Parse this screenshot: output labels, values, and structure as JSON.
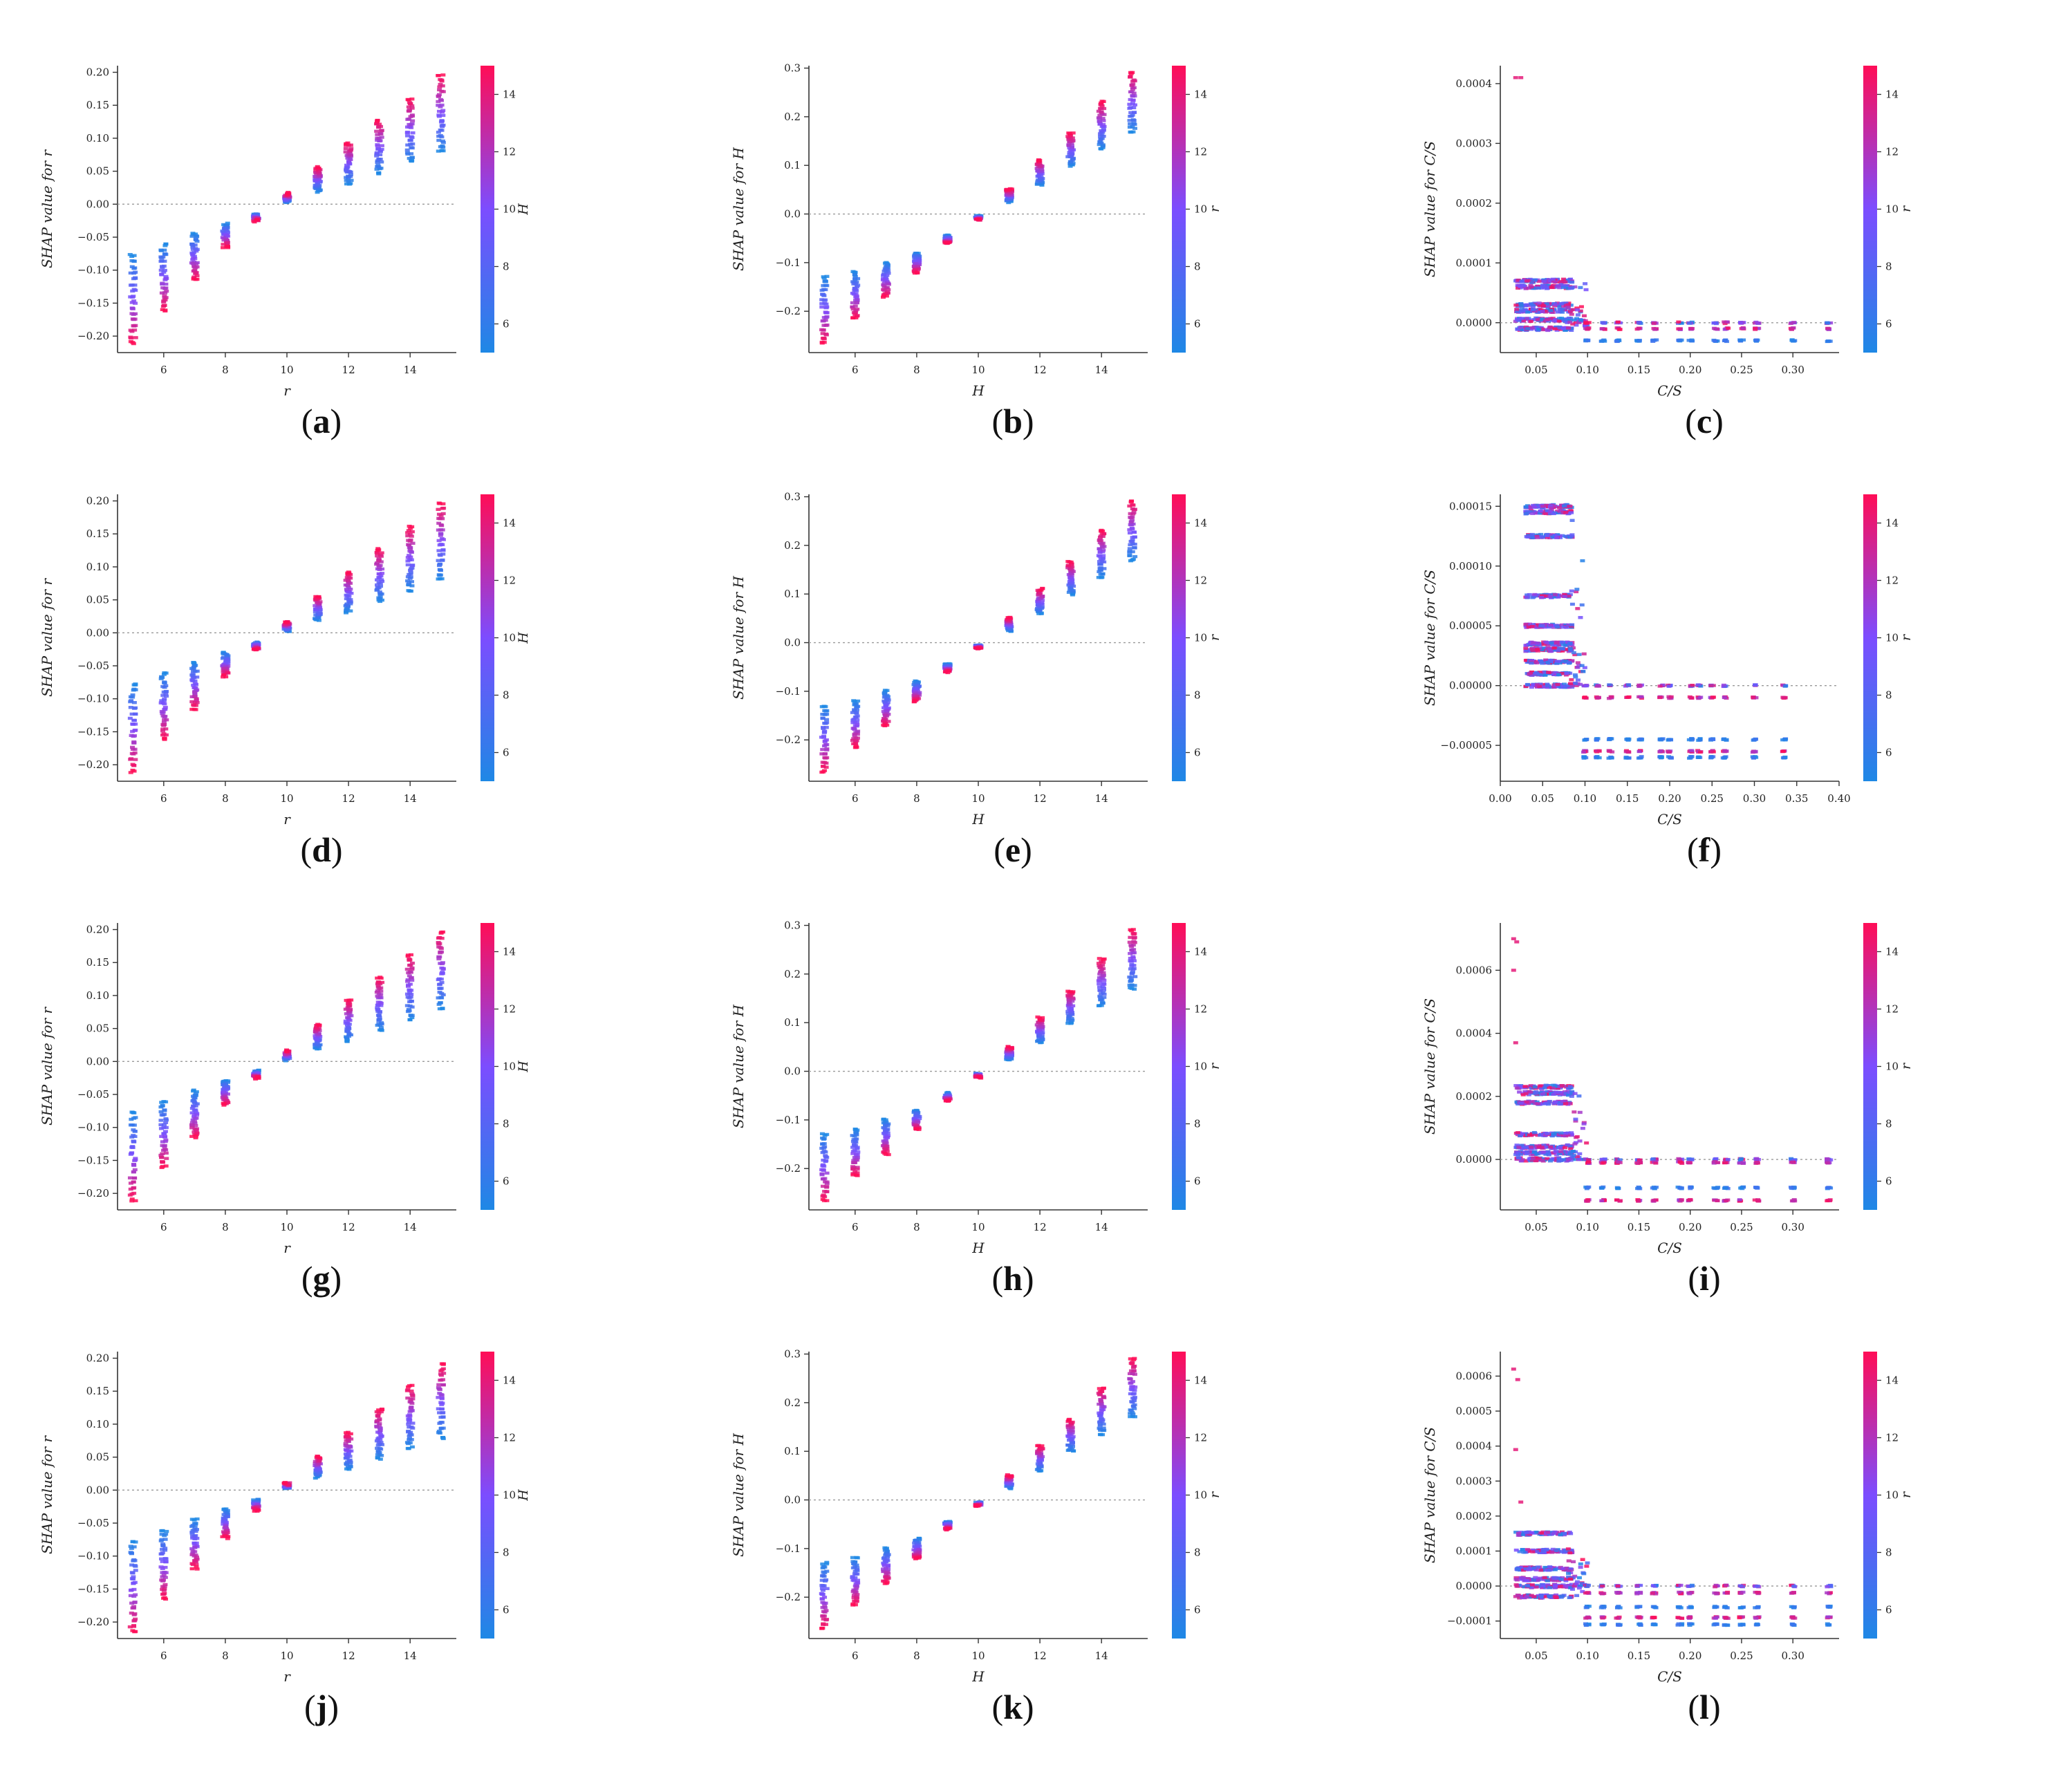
{
  "figure": {
    "colorbar": {
      "low_color": "#1E88E5",
      "high_color": "#FF0D57",
      "ticks": [
        6,
        8,
        10,
        12,
        14
      ]
    },
    "caption_bold": "true"
  },
  "chart_data": [
    {
      "type": "scatter",
      "caption": "(a)",
      "xlabel": "r",
      "ylabel": "SHAP value for r",
      "colorbar_label": "H",
      "kind": "linear",
      "xlim": [
        4.5,
        15.5
      ],
      "ylim": [
        -0.225,
        0.21
      ],
      "xticks": [
        6,
        8,
        10,
        12,
        14
      ],
      "xtick_labels": [
        "6",
        "8",
        "10",
        "12",
        "14"
      ],
      "yticks": [
        -0.2,
        -0.15,
        -0.1,
        -0.05,
        0.0,
        0.05,
        0.1,
        0.15,
        0.2
      ],
      "ytick_labels": [
        "−0.20",
        "−0.15",
        "−0.10",
        "−0.05",
        "0.00",
        "0.05",
        "0.10",
        "0.15",
        "0.20"
      ],
      "x": [
        5,
        6,
        7,
        8,
        9,
        10,
        11,
        12,
        13,
        14,
        15
      ],
      "y_low": [
        -0.078,
        -0.062,
        -0.045,
        -0.03,
        -0.015,
        0.003,
        0.02,
        0.032,
        0.048,
        0.065,
        0.08
      ],
      "y_high": [
        -0.21,
        -0.16,
        -0.115,
        -0.065,
        -0.025,
        0.016,
        0.055,
        0.092,
        0.127,
        0.16,
        0.195
      ]
    },
    {
      "type": "scatter",
      "caption": "(b)",
      "xlabel": "H",
      "ylabel": "SHAP value for H",
      "colorbar_label": "r",
      "kind": "linear",
      "xlim": [
        4.5,
        15.5
      ],
      "ylim": [
        -0.285,
        0.305
      ],
      "xticks": [
        6,
        8,
        10,
        12,
        14
      ],
      "xtick_labels": [
        "6",
        "8",
        "10",
        "12",
        "14"
      ],
      "yticks": [
        -0.2,
        -0.1,
        0.0,
        0.1,
        0.2,
        0.3
      ],
      "ytick_labels": [
        "−0.2",
        "−0.1",
        "0.0",
        "0.1",
        "0.2",
        "0.3"
      ],
      "x": [
        5,
        6,
        7,
        8,
        9,
        10,
        11,
        12,
        13,
        14,
        15
      ],
      "y_low": [
        -0.13,
        -0.12,
        -0.1,
        -0.08,
        -0.045,
        -0.005,
        0.025,
        0.06,
        0.1,
        0.135,
        0.17
      ],
      "y_high": [
        -0.265,
        -0.215,
        -0.17,
        -0.12,
        -0.06,
        -0.012,
        0.05,
        0.11,
        0.165,
        0.23,
        0.29
      ]
    },
    {
      "type": "scatter",
      "caption": "(c)",
      "xlabel": "C/S",
      "ylabel": "SHAP value for C/S",
      "colorbar_label": "r",
      "kind": "cs",
      "xlim": [
        0.015,
        0.345
      ],
      "ylim": [
        -5e-05,
        0.00043
      ],
      "xticks": [
        0.05,
        0.1,
        0.15,
        0.2,
        0.25,
        0.3
      ],
      "xtick_labels": [
        "0.05",
        "0.10",
        "0.15",
        "0.20",
        "0.25",
        "0.30"
      ],
      "yticks": [
        0.0,
        0.0001,
        0.0002,
        0.0003,
        0.0004
      ],
      "ytick_labels": [
        "0.0000",
        "0.0001",
        "0.0002",
        "0.0003",
        "0.0004"
      ],
      "x": [
        0.1,
        0.115,
        0.13,
        0.15,
        0.165,
        0.19,
        0.2,
        0.225,
        0.235,
        0.25,
        0.265,
        0.3,
        0.335
      ],
      "bands_left": [
        7e-05,
        6e-05,
        3e-05,
        2e-05,
        5e-06,
        -1e-05
      ],
      "bands_right": [
        0.0,
        -1e-05,
        -3e-05
      ],
      "outliers": [
        [
          0.03,
          0.00041
        ],
        [
          0.035,
          0.00041
        ]
      ]
    },
    {
      "type": "scatter",
      "caption": "(d)",
      "xlabel": "r",
      "ylabel": "SHAP value for r",
      "colorbar_label": "H",
      "kind": "linear",
      "xlim": [
        4.5,
        15.5
      ],
      "ylim": [
        -0.225,
        0.21
      ],
      "xticks": [
        6,
        8,
        10,
        12,
        14
      ],
      "xtick_labels": [
        "6",
        "8",
        "10",
        "12",
        "14"
      ],
      "yticks": [
        -0.2,
        -0.15,
        -0.1,
        -0.05,
        0.0,
        0.05,
        0.1,
        0.15,
        0.2
      ],
      "ytick_labels": [
        "−0.20",
        "−0.15",
        "−0.10",
        "−0.05",
        "0.00",
        "0.05",
        "0.10",
        "0.15",
        "0.20"
      ],
      "x": [
        5,
        6,
        7,
        8,
        9,
        10,
        11,
        12,
        13,
        14,
        15
      ],
      "y_low": [
        -0.078,
        -0.062,
        -0.045,
        -0.03,
        -0.015,
        0.003,
        0.02,
        0.032,
        0.048,
        0.065,
        0.08
      ],
      "y_high": [
        -0.21,
        -0.16,
        -0.115,
        -0.065,
        -0.025,
        0.016,
        0.055,
        0.092,
        0.127,
        0.16,
        0.195
      ]
    },
    {
      "type": "scatter",
      "caption": "(e)",
      "xlabel": "H",
      "ylabel": "SHAP value for H",
      "colorbar_label": "r",
      "kind": "linear",
      "xlim": [
        4.5,
        15.5
      ],
      "ylim": [
        -0.285,
        0.305
      ],
      "xticks": [
        6,
        8,
        10,
        12,
        14
      ],
      "xtick_labels": [
        "6",
        "8",
        "10",
        "12",
        "14"
      ],
      "yticks": [
        -0.2,
        -0.1,
        0.0,
        0.1,
        0.2,
        0.3
      ],
      "ytick_labels": [
        "−0.2",
        "−0.1",
        "0.0",
        "0.1",
        "0.2",
        "0.3"
      ],
      "x": [
        5,
        6,
        7,
        8,
        9,
        10,
        11,
        12,
        13,
        14,
        15
      ],
      "y_low": [
        -0.13,
        -0.12,
        -0.1,
        -0.08,
        -0.045,
        -0.005,
        0.025,
        0.06,
        0.1,
        0.135,
        0.17
      ],
      "y_high": [
        -0.265,
        -0.215,
        -0.17,
        -0.12,
        -0.06,
        -0.012,
        0.05,
        0.11,
        0.165,
        0.23,
        0.29
      ]
    },
    {
      "type": "scatter",
      "caption": "(f)",
      "xlabel": "C/S",
      "ylabel": "SHAP value for C/S",
      "colorbar_label": "r",
      "kind": "cs",
      "xlim": [
        0.0,
        0.4
      ],
      "ylim": [
        -8e-05,
        0.00016
      ],
      "xticks": [
        0.0,
        0.05,
        0.1,
        0.15,
        0.2,
        0.25,
        0.3,
        0.35,
        0.4
      ],
      "xtick_labels": [
        "0.00",
        "0.05",
        "0.10",
        "0.15",
        "0.20",
        "0.25",
        "0.30",
        "0.35",
        "0.40"
      ],
      "yticks": [
        -5e-05,
        0.0,
        5e-05,
        0.0001,
        0.00015
      ],
      "ytick_labels": [
        "−0.00005",
        "0.00000",
        "0.00005",
        "0.00010",
        "0.00015"
      ],
      "x": [
        0.1,
        0.115,
        0.13,
        0.15,
        0.165,
        0.19,
        0.2,
        0.225,
        0.235,
        0.25,
        0.265,
        0.3,
        0.335
      ],
      "bands_left": [
        0.00015,
        0.000145,
        0.000125,
        7.5e-05,
        5e-05,
        3.5e-05,
        3e-05,
        2e-05,
        1e-05,
        0.0
      ],
      "bands_right": [
        0.0,
        -1e-05,
        -4.5e-05,
        -5.5e-05,
        -6e-05
      ],
      "outliers": []
    },
    {
      "type": "scatter",
      "caption": "(g)",
      "xlabel": "r",
      "ylabel": "SHAP value for r",
      "colorbar_label": "H",
      "kind": "linear",
      "xlim": [
        4.5,
        15.5
      ],
      "ylim": [
        -0.225,
        0.21
      ],
      "xticks": [
        6,
        8,
        10,
        12,
        14
      ],
      "xtick_labels": [
        "6",
        "8",
        "10",
        "12",
        "14"
      ],
      "yticks": [
        -0.2,
        -0.15,
        -0.1,
        -0.05,
        0.0,
        0.05,
        0.1,
        0.15,
        0.2
      ],
      "ytick_labels": [
        "−0.20",
        "−0.15",
        "−0.10",
        "−0.05",
        "0.00",
        "0.05",
        "0.10",
        "0.15",
        "0.20"
      ],
      "x": [
        5,
        6,
        7,
        8,
        9,
        10,
        11,
        12,
        13,
        14,
        15
      ],
      "y_low": [
        -0.078,
        -0.062,
        -0.045,
        -0.03,
        -0.015,
        0.003,
        0.02,
        0.032,
        0.048,
        0.065,
        0.08
      ],
      "y_high": [
        -0.21,
        -0.16,
        -0.115,
        -0.065,
        -0.025,
        0.016,
        0.055,
        0.092,
        0.127,
        0.16,
        0.195
      ]
    },
    {
      "type": "scatter",
      "caption": "(h)",
      "xlabel": "H",
      "ylabel": "SHAP value for H",
      "colorbar_label": "r",
      "kind": "linear",
      "xlim": [
        4.5,
        15.5
      ],
      "ylim": [
        -0.285,
        0.305
      ],
      "xticks": [
        6,
        8,
        10,
        12,
        14
      ],
      "xtick_labels": [
        "6",
        "8",
        "10",
        "12",
        "14"
      ],
      "yticks": [
        -0.2,
        -0.1,
        0.0,
        0.1,
        0.2,
        0.3
      ],
      "ytick_labels": [
        "−0.2",
        "−0.1",
        "0.0",
        "0.1",
        "0.2",
        "0.3"
      ],
      "x": [
        5,
        6,
        7,
        8,
        9,
        10,
        11,
        12,
        13,
        14,
        15
      ],
      "y_low": [
        -0.13,
        -0.12,
        -0.1,
        -0.08,
        -0.045,
        -0.005,
        0.025,
        0.06,
        0.1,
        0.135,
        0.17
      ],
      "y_high": [
        -0.265,
        -0.215,
        -0.17,
        -0.12,
        -0.06,
        -0.012,
        0.05,
        0.11,
        0.165,
        0.23,
        0.29
      ]
    },
    {
      "type": "scatter",
      "caption": "(i)",
      "xlabel": "C/S",
      "ylabel": "SHAP value for C/S",
      "colorbar_label": "r",
      "kind": "cs",
      "xlim": [
        0.015,
        0.345
      ],
      "ylim": [
        -0.00016,
        0.00075
      ],
      "xticks": [
        0.05,
        0.1,
        0.15,
        0.2,
        0.25,
        0.3
      ],
      "xtick_labels": [
        "0.05",
        "0.10",
        "0.15",
        "0.20",
        "0.25",
        "0.30"
      ],
      "yticks": [
        0.0,
        0.0002,
        0.0004,
        0.0006
      ],
      "ytick_labels": [
        "0.0000",
        "0.0002",
        "0.0004",
        "0.0006"
      ],
      "x": [
        0.1,
        0.115,
        0.13,
        0.15,
        0.165,
        0.19,
        0.2,
        0.225,
        0.235,
        0.25,
        0.265,
        0.3,
        0.335
      ],
      "bands_left": [
        0.00023,
        0.00021,
        0.00018,
        8e-05,
        4e-05,
        2e-05,
        0.0
      ],
      "bands_right": [
        0.0,
        -1e-05,
        -9e-05,
        -0.00013
      ],
      "outliers": [
        [
          0.028,
          0.0007
        ],
        [
          0.031,
          0.00069
        ],
        [
          0.028,
          0.0006
        ],
        [
          0.03,
          0.00037
        ]
      ]
    },
    {
      "type": "scatter",
      "caption": "(j)",
      "xlabel": "r",
      "ylabel": "SHAP value for r",
      "colorbar_label": "H",
      "kind": "linear",
      "xlim": [
        4.5,
        15.5
      ],
      "ylim": [
        -0.225,
        0.21
      ],
      "xticks": [
        6,
        8,
        10,
        12,
        14
      ],
      "xtick_labels": [
        "6",
        "8",
        "10",
        "12",
        "14"
      ],
      "yticks": [
        -0.2,
        -0.15,
        -0.1,
        -0.05,
        0.0,
        0.05,
        0.1,
        0.15,
        0.2
      ],
      "ytick_labels": [
        "−0.20",
        "−0.15",
        "−0.10",
        "−0.05",
        "0.00",
        "0.05",
        "0.10",
        "0.15",
        "0.20"
      ],
      "x": [
        5,
        6,
        7,
        8,
        9,
        10,
        11,
        12,
        13,
        14,
        15
      ],
      "y_low": [
        -0.078,
        -0.062,
        -0.045,
        -0.03,
        -0.015,
        0.003,
        0.02,
        0.032,
        0.048,
        0.065,
        0.08
      ],
      "y_high": [
        -0.215,
        -0.165,
        -0.118,
        -0.072,
        -0.03,
        0.01,
        0.05,
        0.087,
        0.122,
        0.157,
        0.19
      ]
    },
    {
      "type": "scatter",
      "caption": "(k)",
      "xlabel": "H",
      "ylabel": "SHAP value for H",
      "colorbar_label": "r",
      "kind": "linear",
      "xlim": [
        4.5,
        15.5
      ],
      "ylim": [
        -0.285,
        0.305
      ],
      "xticks": [
        6,
        8,
        10,
        12,
        14
      ],
      "xtick_labels": [
        "6",
        "8",
        "10",
        "12",
        "14"
      ],
      "yticks": [
        -0.2,
        -0.1,
        0.0,
        0.1,
        0.2,
        0.3
      ],
      "ytick_labels": [
        "−0.2",
        "−0.1",
        "0.0",
        "0.1",
        "0.2",
        "0.3"
      ],
      "x": [
        5,
        6,
        7,
        8,
        9,
        10,
        11,
        12,
        13,
        14,
        15
      ],
      "y_low": [
        -0.13,
        -0.12,
        -0.1,
        -0.08,
        -0.045,
        -0.005,
        0.025,
        0.06,
        0.1,
        0.135,
        0.17
      ],
      "y_high": [
        -0.265,
        -0.215,
        -0.17,
        -0.12,
        -0.06,
        -0.012,
        0.05,
        0.11,
        0.165,
        0.23,
        0.29
      ]
    },
    {
      "type": "scatter",
      "caption": "(l)",
      "xlabel": "C/S",
      "ylabel": "SHAP value for C/S",
      "colorbar_label": "r",
      "kind": "cs",
      "xlim": [
        0.015,
        0.345
      ],
      "ylim": [
        -0.00015,
        0.00067
      ],
      "xticks": [
        0.05,
        0.1,
        0.15,
        0.2,
        0.25,
        0.3
      ],
      "xtick_labels": [
        "0.05",
        "0.10",
        "0.15",
        "0.20",
        "0.25",
        "0.30"
      ],
      "yticks": [
        -0.0001,
        0.0,
        0.0001,
        0.0002,
        0.0003,
        0.0004,
        0.0005,
        0.0006
      ],
      "ytick_labels": [
        "−0.0001",
        "0.0000",
        "0.0001",
        "0.0002",
        "0.0003",
        "0.0004",
        "0.0005",
        "0.0006"
      ],
      "x": [
        0.1,
        0.115,
        0.13,
        0.15,
        0.165,
        0.19,
        0.2,
        0.225,
        0.235,
        0.25,
        0.265,
        0.3,
        0.335
      ],
      "bands_left": [
        0.00015,
        0.0001,
        5e-05,
        2e-05,
        0.0,
        -3e-05
      ],
      "bands_right": [
        0.0,
        -2e-05,
        -6e-05,
        -9e-05,
        -0.00011
      ],
      "outliers": [
        [
          0.028,
          0.00062
        ],
        [
          0.032,
          0.00059
        ],
        [
          0.03,
          0.00039
        ],
        [
          0.035,
          0.00024
        ]
      ]
    }
  ]
}
